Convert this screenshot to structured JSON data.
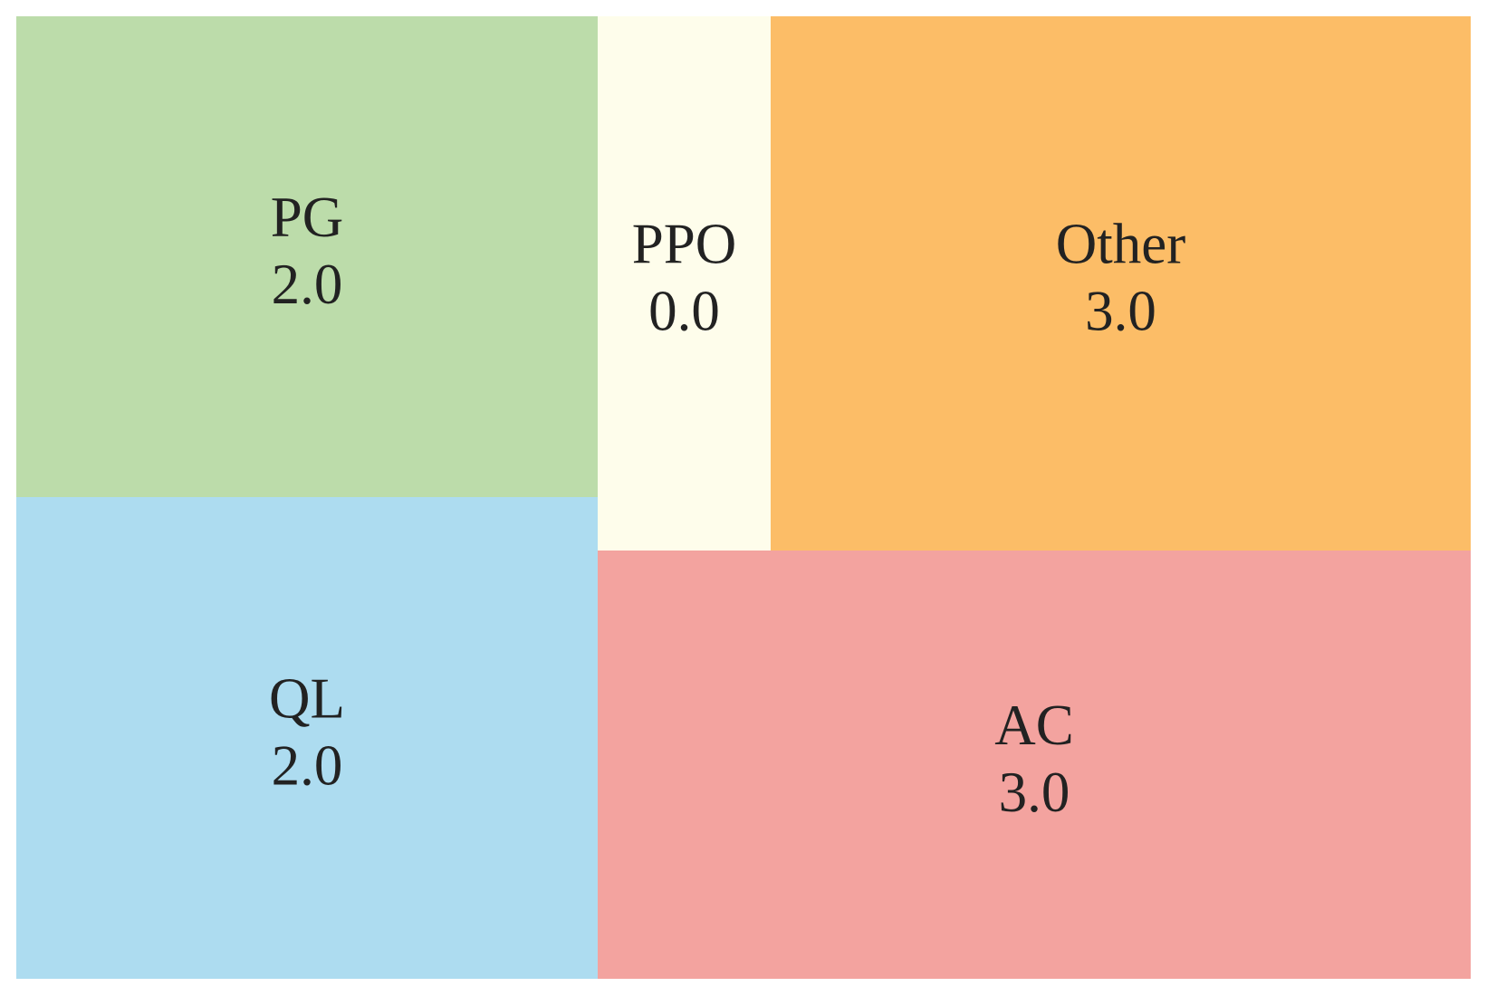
{
  "chart_data": {
    "type": "treemap",
    "categories": [
      "PG",
      "QL",
      "PPO",
      "Other",
      "AC"
    ],
    "values": [
      2,
      2,
      0,
      3,
      3
    ],
    "value_labels": [
      "2.0",
      "2.0",
      "0.0",
      "3.0",
      "3.0"
    ],
    "colors": [
      "#bcdcaa",
      "#addcf0",
      "#fefdeb",
      "#fcbd67",
      "#f3a39f"
    ]
  }
}
